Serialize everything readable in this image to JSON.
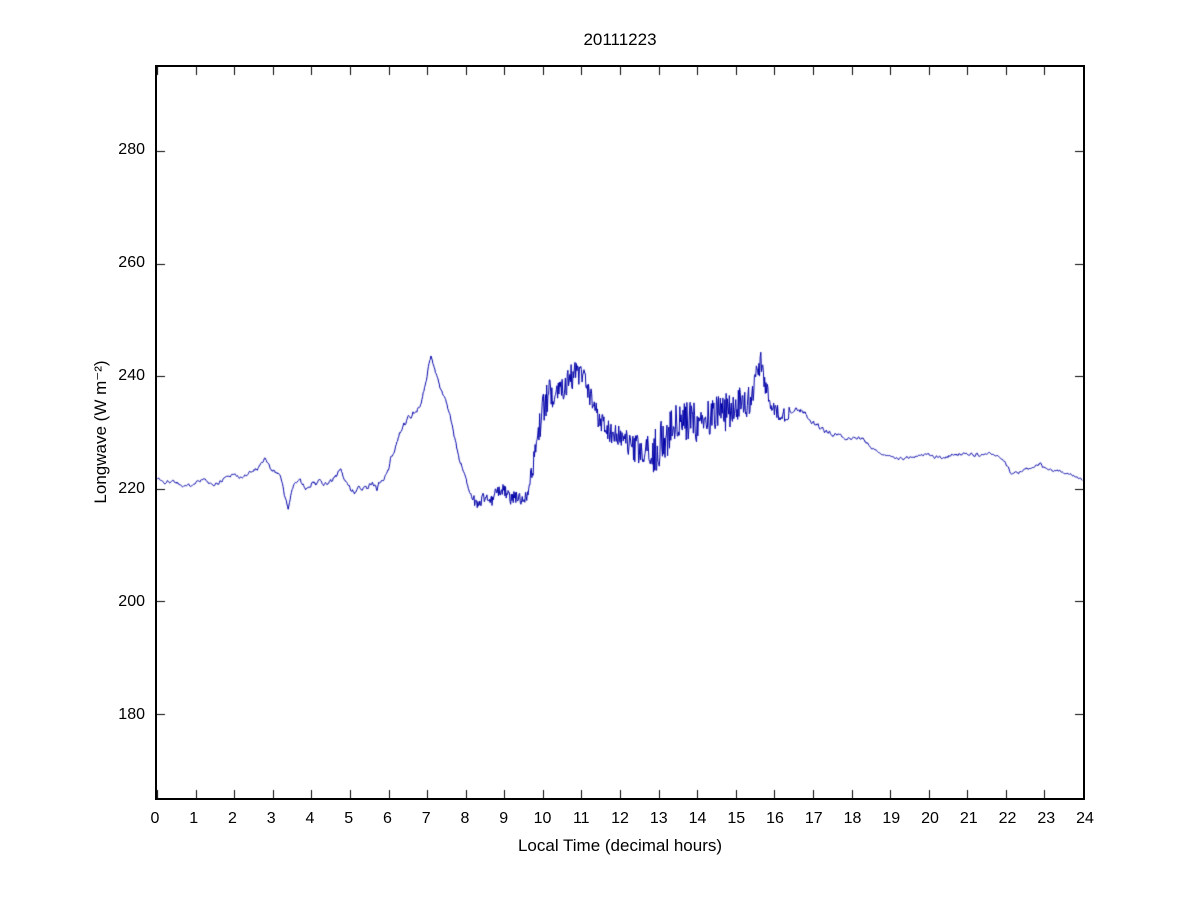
{
  "figure": {
    "background": "#ffffff"
  },
  "chart_data": {
    "type": "line",
    "title": "20111223",
    "xlabel": "Local Time (decimal hours)",
    "ylabel": "Longwave (W m⁻²)",
    "xlim": [
      0,
      24
    ],
    "ylim": [
      165,
      295
    ],
    "x_ticks": [
      0,
      1,
      2,
      3,
      4,
      5,
      6,
      7,
      8,
      9,
      10,
      11,
      12,
      13,
      14,
      15,
      16,
      17,
      18,
      19,
      20,
      21,
      22,
      23,
      24
    ],
    "y_ticks": [
      180,
      200,
      220,
      240,
      260,
      280
    ],
    "grid": false,
    "legend": "none",
    "line_color": "#0000A8",
    "axis_color": "#000000",
    "series": [
      {
        "name": "longwave",
        "keypoints": [
          [
            0.0,
            222.0
          ],
          [
            0.2,
            221.0
          ],
          [
            0.4,
            221.5
          ],
          [
            0.6,
            220.8
          ],
          [
            0.8,
            220.5
          ],
          [
            1.0,
            221.2
          ],
          [
            1.2,
            221.8
          ],
          [
            1.4,
            220.6
          ],
          [
            1.6,
            221.0
          ],
          [
            1.8,
            222.2
          ],
          [
            2.0,
            222.6
          ],
          [
            2.2,
            221.8
          ],
          [
            2.4,
            223.0
          ],
          [
            2.6,
            223.6
          ],
          [
            2.8,
            225.3
          ],
          [
            3.0,
            223.2
          ],
          [
            3.2,
            222.6
          ],
          [
            3.3,
            219.0
          ],
          [
            3.4,
            216.4
          ],
          [
            3.5,
            219.8
          ],
          [
            3.6,
            221.0
          ],
          [
            3.7,
            221.6
          ],
          [
            3.85,
            219.8
          ],
          [
            4.0,
            220.6
          ],
          [
            4.2,
            221.4
          ],
          [
            4.4,
            221.0
          ],
          [
            4.6,
            221.8
          ],
          [
            4.75,
            223.6
          ],
          [
            4.9,
            221.0
          ],
          [
            5.1,
            219.6
          ],
          [
            5.3,
            220.0
          ],
          [
            5.5,
            220.8
          ],
          [
            5.7,
            220.4
          ],
          [
            5.9,
            222.0
          ],
          [
            6.1,
            226.0
          ],
          [
            6.3,
            230.0
          ],
          [
            6.5,
            232.5
          ],
          [
            6.7,
            233.5
          ],
          [
            6.85,
            235.0
          ],
          [
            7.0,
            240.0
          ],
          [
            7.1,
            243.5
          ],
          [
            7.2,
            241.5
          ],
          [
            7.35,
            238.0
          ],
          [
            7.5,
            235.5
          ],
          [
            7.65,
            231.0
          ],
          [
            7.8,
            226.5
          ],
          [
            8.0,
            221.5
          ],
          [
            8.2,
            218.0
          ],
          [
            8.35,
            217.2
          ],
          [
            8.5,
            218.8
          ],
          [
            8.65,
            217.6
          ],
          [
            8.8,
            219.4
          ],
          [
            9.0,
            219.8
          ],
          [
            9.15,
            218.2
          ],
          [
            9.3,
            218.6
          ],
          [
            9.45,
            218.0
          ],
          [
            9.6,
            219.4
          ],
          [
            9.75,
            224.0
          ],
          [
            9.85,
            229.0
          ],
          [
            10.0,
            234.0
          ],
          [
            10.15,
            236.5
          ],
          [
            10.3,
            237.5
          ],
          [
            10.45,
            238.0
          ],
          [
            10.6,
            239.0
          ],
          [
            10.75,
            240.0
          ],
          [
            10.9,
            240.5
          ],
          [
            11.05,
            239.5
          ],
          [
            11.2,
            236.5
          ],
          [
            11.35,
            234.0
          ],
          [
            11.5,
            232.5
          ],
          [
            11.65,
            231.0
          ],
          [
            11.8,
            229.8
          ],
          [
            12.0,
            229.2
          ],
          [
            12.2,
            227.8
          ],
          [
            12.4,
            226.8
          ],
          [
            12.6,
            226.2
          ],
          [
            12.8,
            225.6
          ],
          [
            13.0,
            227.5
          ],
          [
            13.2,
            229.5
          ],
          [
            13.4,
            230.8
          ],
          [
            13.6,
            231.2
          ],
          [
            13.8,
            231.8
          ],
          [
            14.0,
            232.3
          ],
          [
            14.2,
            231.8
          ],
          [
            14.4,
            232.8
          ],
          [
            14.6,
            233.2
          ],
          [
            14.8,
            233.8
          ],
          [
            15.0,
            235.2
          ],
          [
            15.2,
            234.8
          ],
          [
            15.4,
            236.2
          ],
          [
            15.55,
            240.5
          ],
          [
            15.65,
            242.5
          ],
          [
            15.75,
            238.5
          ],
          [
            15.9,
            235.5
          ],
          [
            16.1,
            233.5
          ],
          [
            16.3,
            233.0
          ],
          [
            16.5,
            234.2
          ],
          [
            16.7,
            234.0
          ],
          [
            16.9,
            232.5
          ],
          [
            17.1,
            231.2
          ],
          [
            17.3,
            230.4
          ],
          [
            17.5,
            229.8
          ],
          [
            17.7,
            229.4
          ],
          [
            17.9,
            228.8
          ],
          [
            18.1,
            229.2
          ],
          [
            18.3,
            228.8
          ],
          [
            18.5,
            227.5
          ],
          [
            18.7,
            226.5
          ],
          [
            18.9,
            225.8
          ],
          [
            19.1,
            225.4
          ],
          [
            19.4,
            225.5
          ],
          [
            19.7,
            225.8
          ],
          [
            20.0,
            226.0
          ],
          [
            20.3,
            225.4
          ],
          [
            20.6,
            225.9
          ],
          [
            20.9,
            226.3
          ],
          [
            21.2,
            226.0
          ],
          [
            21.5,
            226.4
          ],
          [
            21.8,
            225.8
          ],
          [
            22.0,
            224.5
          ],
          [
            22.15,
            222.6
          ],
          [
            22.3,
            222.9
          ],
          [
            22.5,
            223.4
          ],
          [
            22.7,
            224.0
          ],
          [
            22.9,
            224.4
          ],
          [
            23.1,
            223.6
          ],
          [
            23.3,
            223.2
          ],
          [
            23.6,
            222.8
          ],
          [
            23.8,
            222.2
          ],
          [
            24.0,
            221.6
          ]
        ],
        "noise_amplitude_keypoints": [
          [
            0,
            0.5
          ],
          [
            2.9,
            0.5
          ],
          [
            3.5,
            0.6
          ],
          [
            5.3,
            0.9
          ],
          [
            6.3,
            1.0
          ],
          [
            7.2,
            0.6
          ],
          [
            8.0,
            0.9
          ],
          [
            8.4,
            1.1
          ],
          [
            9.5,
            1.1
          ],
          [
            9.8,
            2.0
          ],
          [
            10.0,
            3.0
          ],
          [
            10.6,
            2.6
          ],
          [
            11.2,
            2.4
          ],
          [
            11.9,
            1.9
          ],
          [
            12.5,
            3.0
          ],
          [
            13.0,
            4.2
          ],
          [
            13.7,
            4.2
          ],
          [
            14.3,
            3.8
          ],
          [
            14.9,
            3.4
          ],
          [
            15.4,
            2.6
          ],
          [
            15.8,
            1.6
          ],
          [
            16.4,
            1.0
          ],
          [
            17.2,
            0.7
          ],
          [
            18.0,
            0.5
          ],
          [
            19.0,
            0.4
          ],
          [
            20.5,
            0.5
          ],
          [
            22.0,
            0.4
          ],
          [
            23.0,
            0.45
          ],
          [
            24.0,
            0.4
          ]
        ],
        "sample_step_hours": 0.016667
      }
    ]
  }
}
